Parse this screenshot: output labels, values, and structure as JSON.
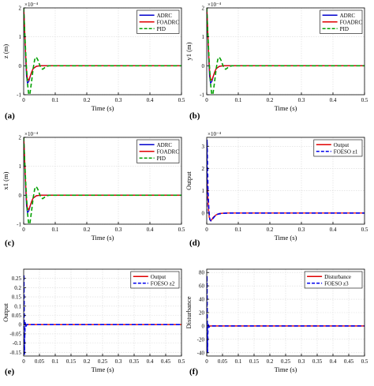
{
  "figure": {
    "panel_letters": [
      "(a)",
      "(b)",
      "(c)",
      "(d)",
      "(e)",
      "(f)"
    ]
  },
  "colors": {
    "adrc": "#0000cc",
    "foadrc": "#e00000",
    "pid": "#00a000",
    "output": "#e00000",
    "foeso": "#0000ee",
    "disturbance": "#e00000",
    "axis": "#000000",
    "grid": "#d9d9d9"
  },
  "chart_data": [
    {
      "id": "a",
      "type": "line",
      "xlabel": "Time (s)",
      "ylabel": "z (m)",
      "exponent_label": "×10⁻⁴",
      "xlim": [
        0,
        0.5
      ],
      "ylim": [
        -1,
        2
      ],
      "xticks": [
        0,
        0.1,
        0.2,
        0.3,
        0.4,
        0.5
      ],
      "xtick_labels": [
        "0",
        "0.1",
        "0.2",
        "0.3",
        "0.4",
        "0.5"
      ],
      "yticks": [
        -1,
        0,
        1,
        2
      ],
      "ytick_labels": [
        "-1",
        "0",
        "1",
        "2"
      ],
      "grid": true,
      "legend_position": "top-right",
      "series": [
        {
          "name": "ADRC",
          "color": "#0000cc",
          "dash": "solid",
          "x": [
            0,
            0.003,
            0.006,
            0.009,
            0.012,
            0.016,
            0.02,
            0.025,
            0.03,
            0.04,
            0.05,
            0.06,
            0.08,
            0.1,
            0.5
          ],
          "y": [
            2.1,
            1.2,
            0.3,
            -0.35,
            -0.6,
            -0.55,
            -0.4,
            -0.22,
            -0.1,
            -0.02,
            0.0,
            0.0,
            0.0,
            0.0,
            0.0
          ]
        },
        {
          "name": "FOADRC",
          "color": "#e00000",
          "dash": "solid",
          "x": [
            0,
            0.003,
            0.006,
            0.009,
            0.012,
            0.016,
            0.02,
            0.025,
            0.03,
            0.04,
            0.05,
            0.06,
            0.08,
            0.1,
            0.5
          ],
          "y": [
            2.1,
            1.3,
            0.45,
            -0.15,
            -0.45,
            -0.5,
            -0.38,
            -0.22,
            -0.1,
            -0.02,
            0.0,
            0.0,
            0.0,
            0.0,
            0.0
          ]
        },
        {
          "name": "PID",
          "color": "#00a000",
          "dash": "dashed",
          "x": [
            0,
            0.004,
            0.008,
            0.012,
            0.016,
            0.02,
            0.025,
            0.03,
            0.035,
            0.04,
            0.045,
            0.05,
            0.055,
            0.06,
            0.065,
            0.07,
            0.08,
            0.09,
            0.1,
            0.5
          ],
          "y": [
            2.0,
            1.0,
            0.1,
            -0.6,
            -1.0,
            -0.95,
            -0.55,
            -0.1,
            0.22,
            0.3,
            0.2,
            0.05,
            -0.08,
            -0.12,
            -0.08,
            -0.03,
            0.0,
            0.0,
            0.0,
            0.0
          ]
        }
      ]
    },
    {
      "id": "b",
      "type": "line",
      "xlabel": "Time (s)",
      "ylabel": "y1 (m)",
      "exponent_label": "×10⁻⁴",
      "xlim": [
        0,
        0.5
      ],
      "ylim": [
        -1,
        2
      ],
      "xticks": [
        0,
        0.1,
        0.2,
        0.3,
        0.4,
        0.5
      ],
      "xtick_labels": [
        "0",
        "0.1",
        "0.2",
        "0.3",
        "0.4",
        "0.5"
      ],
      "yticks": [
        -1,
        0,
        1,
        2
      ],
      "ytick_labels": [
        "-1",
        "0",
        "1",
        "2"
      ],
      "grid": true,
      "legend_position": "top-right",
      "series": [
        {
          "name": "ADRC",
          "color": "#0000cc",
          "dash": "solid",
          "x": [
            0,
            0.003,
            0.006,
            0.009,
            0.012,
            0.016,
            0.02,
            0.025,
            0.03,
            0.04,
            0.05,
            0.06,
            0.08,
            0.1,
            0.5
          ],
          "y": [
            2.1,
            1.2,
            0.3,
            -0.35,
            -0.6,
            -0.55,
            -0.4,
            -0.22,
            -0.1,
            -0.02,
            0.0,
            0.0,
            0.0,
            0.0,
            0.0
          ]
        },
        {
          "name": "FOADRC",
          "color": "#e00000",
          "dash": "solid",
          "x": [
            0,
            0.003,
            0.006,
            0.009,
            0.012,
            0.016,
            0.02,
            0.025,
            0.03,
            0.04,
            0.05,
            0.06,
            0.08,
            0.1,
            0.5
          ],
          "y": [
            2.1,
            1.3,
            0.45,
            -0.15,
            -0.45,
            -0.5,
            -0.38,
            -0.22,
            -0.1,
            -0.02,
            0.0,
            0.0,
            0.0,
            0.0,
            0.0
          ]
        },
        {
          "name": "PID",
          "color": "#00a000",
          "dash": "dashed",
          "x": [
            0,
            0.004,
            0.008,
            0.012,
            0.016,
            0.02,
            0.025,
            0.03,
            0.035,
            0.04,
            0.045,
            0.05,
            0.055,
            0.06,
            0.065,
            0.07,
            0.08,
            0.09,
            0.1,
            0.5
          ],
          "y": [
            2.0,
            1.0,
            0.1,
            -0.6,
            -1.0,
            -0.95,
            -0.55,
            -0.1,
            0.22,
            0.3,
            0.2,
            0.05,
            -0.08,
            -0.12,
            -0.08,
            -0.03,
            0.0,
            0.0,
            0.0,
            0.0
          ]
        }
      ]
    },
    {
      "id": "c",
      "type": "line",
      "xlabel": "Time (s)",
      "ylabel": "x1 (m)",
      "exponent_label": "×10⁻⁴",
      "xlim": [
        0,
        0.5
      ],
      "ylim": [
        -1,
        2
      ],
      "xticks": [
        0,
        0.1,
        0.2,
        0.3,
        0.4,
        0.5
      ],
      "xtick_labels": [
        "0",
        "0.1",
        "0.2",
        "0.3",
        "0.4",
        "0.5"
      ],
      "yticks": [
        -1,
        0,
        1,
        2
      ],
      "ytick_labels": [
        "-1",
        "0",
        "1",
        "2"
      ],
      "grid": true,
      "legend_position": "top-right",
      "series": [
        {
          "name": "ADRC",
          "color": "#0000cc",
          "dash": "solid",
          "x": [
            0,
            0.003,
            0.006,
            0.009,
            0.012,
            0.016,
            0.02,
            0.025,
            0.03,
            0.04,
            0.05,
            0.06,
            0.08,
            0.1,
            0.5
          ],
          "y": [
            2.1,
            1.2,
            0.3,
            -0.35,
            -0.6,
            -0.55,
            -0.4,
            -0.22,
            -0.1,
            -0.02,
            0.0,
            0.0,
            0.0,
            0.0,
            0.0
          ]
        },
        {
          "name": "FOADRC",
          "color": "#e00000",
          "dash": "solid",
          "x": [
            0,
            0.003,
            0.006,
            0.009,
            0.012,
            0.016,
            0.02,
            0.025,
            0.03,
            0.04,
            0.05,
            0.06,
            0.08,
            0.1,
            0.5
          ],
          "y": [
            2.1,
            1.3,
            0.45,
            -0.15,
            -0.45,
            -0.5,
            -0.38,
            -0.22,
            -0.1,
            -0.02,
            0.0,
            0.0,
            0.0,
            0.0,
            0.0
          ]
        },
        {
          "name": "PID",
          "color": "#00a000",
          "dash": "dashed",
          "x": [
            0,
            0.004,
            0.008,
            0.012,
            0.016,
            0.02,
            0.025,
            0.03,
            0.035,
            0.04,
            0.045,
            0.05,
            0.055,
            0.06,
            0.065,
            0.07,
            0.08,
            0.09,
            0.1,
            0.5
          ],
          "y": [
            2.0,
            1.0,
            0.1,
            -0.6,
            -1.0,
            -0.95,
            -0.55,
            -0.1,
            0.22,
            0.3,
            0.2,
            0.05,
            -0.08,
            -0.12,
            -0.08,
            -0.03,
            0.0,
            0.0,
            0.0,
            0.0
          ]
        }
      ]
    },
    {
      "id": "d",
      "type": "line",
      "xlabel": "Time (s)",
      "ylabel": "Output",
      "exponent_label": "×10⁻⁴",
      "xlim": [
        0,
        0.5
      ],
      "ylim": [
        -0.5,
        3.4
      ],
      "xticks": [
        0,
        0.1,
        0.2,
        0.3,
        0.4,
        0.5
      ],
      "xtick_labels": [
        "0",
        "0.1",
        "0.2",
        "0.3",
        "0.4",
        "0.5"
      ],
      "yticks": [
        0,
        1,
        2,
        3
      ],
      "ytick_labels": [
        "0",
        "1",
        "2",
        "3"
      ],
      "grid": true,
      "legend_position": "top-right",
      "series": [
        {
          "name": "Output",
          "color": "#e00000",
          "dash": "solid",
          "x": [
            0,
            0.002,
            0.005,
            0.008,
            0.012,
            0.016,
            0.02,
            0.03,
            0.04,
            0.06,
            0.08,
            0.1,
            0.5
          ],
          "y": [
            2.1,
            1.2,
            0.3,
            -0.2,
            -0.35,
            -0.3,
            -0.2,
            -0.08,
            -0.02,
            0.0,
            0.0,
            0.0,
            0.0
          ]
        },
        {
          "name": "FOESO z1",
          "color": "#0000ee",
          "dash": "dashed",
          "x": [
            0,
            0.001,
            0.002,
            0.004,
            0.007,
            0.01,
            0.014,
            0.018,
            0.025,
            0.035,
            0.05,
            0.08,
            0.1,
            0.5
          ],
          "y": [
            0.0,
            3.3,
            2.6,
            1.0,
            0.1,
            -0.3,
            -0.35,
            -0.28,
            -0.15,
            -0.05,
            -0.01,
            0.0,
            0.0,
            0.0
          ]
        }
      ]
    },
    {
      "id": "e",
      "type": "line",
      "xlabel": "Time (s)",
      "ylabel": "Output",
      "exponent_label": "",
      "xlim": [
        0,
        0.5
      ],
      "ylim": [
        -0.17,
        0.3
      ],
      "xticks": [
        0,
        0.05,
        0.1,
        0.15,
        0.2,
        0.25,
        0.3,
        0.35,
        0.4,
        0.45,
        0.5
      ],
      "xtick_labels": [
        "0",
        "0.05",
        "0.1",
        "0.15",
        "0.2",
        "0.25",
        "0.3",
        "0.35",
        "0.4",
        "0.45",
        "0.5"
      ],
      "yticks": [
        -0.15,
        -0.1,
        -0.05,
        0,
        0.05,
        0.1,
        0.15,
        0.2,
        0.25
      ],
      "ytick_labels": [
        "-0.15",
        "-0.1",
        "-0.05",
        "0",
        "0.05",
        "0.1",
        "0.15",
        "0.2",
        "0.25"
      ],
      "grid": true,
      "legend_position": "top-right",
      "series": [
        {
          "name": "Output",
          "color": "#e00000",
          "dash": "solid",
          "x": [
            0,
            0.002,
            0.004,
            0.008,
            0.012,
            0.02,
            0.5
          ],
          "y": [
            0.0,
            0.0,
            0.0,
            0.0,
            0.0,
            0.0,
            0.0
          ]
        },
        {
          "name": "FOESO z2",
          "color": "#0000ee",
          "dash": "dashed",
          "x": [
            0,
            0.0008,
            0.0016,
            0.0025,
            0.0035,
            0.005,
            0.007,
            0.01,
            0.015,
            0.02,
            0.5
          ],
          "y": [
            0.0,
            0.27,
            0.1,
            -0.16,
            -0.05,
            0.01,
            -0.01,
            0.0,
            0.0,
            0.0,
            0.0
          ]
        }
      ]
    },
    {
      "id": "f",
      "type": "line",
      "xlabel": "Time (s)",
      "ylabel": "Disturbance",
      "exponent_label": "",
      "xlim": [
        0,
        0.5
      ],
      "ylim": [
        -45,
        85
      ],
      "xticks": [
        0,
        0.05,
        0.1,
        0.15,
        0.2,
        0.25,
        0.3,
        0.35,
        0.4,
        0.45,
        0.5
      ],
      "xtick_labels": [
        "0",
        "0.05",
        "0.1",
        "0.15",
        "0.2",
        "0.25",
        "0.3",
        "0.35",
        "0.4",
        "0.45",
        "0.5"
      ],
      "yticks": [
        -40,
        -20,
        0,
        20,
        40,
        60,
        80
      ],
      "ytick_labels": [
        "-40",
        "-20",
        "0",
        "20",
        "40",
        "60",
        "80"
      ],
      "grid": true,
      "legend_position": "top-right",
      "series": [
        {
          "name": "Disturbance",
          "color": "#e00000",
          "dash": "solid",
          "x": [
            0,
            0.002,
            0.005,
            0.01,
            0.5
          ],
          "y": [
            0.0,
            0.0,
            0.0,
            0.0,
            0.0
          ]
        },
        {
          "name": "FOESO z3",
          "color": "#0000ee",
          "dash": "dashed",
          "x": [
            0,
            0.0008,
            0.0016,
            0.0025,
            0.0035,
            0.005,
            0.007,
            0.01,
            0.015,
            0.5
          ],
          "y": [
            0.0,
            75.0,
            20.0,
            -40.0,
            -10.0,
            4.0,
            -2.0,
            0.0,
            0.0,
            0.0
          ]
        }
      ]
    }
  ]
}
